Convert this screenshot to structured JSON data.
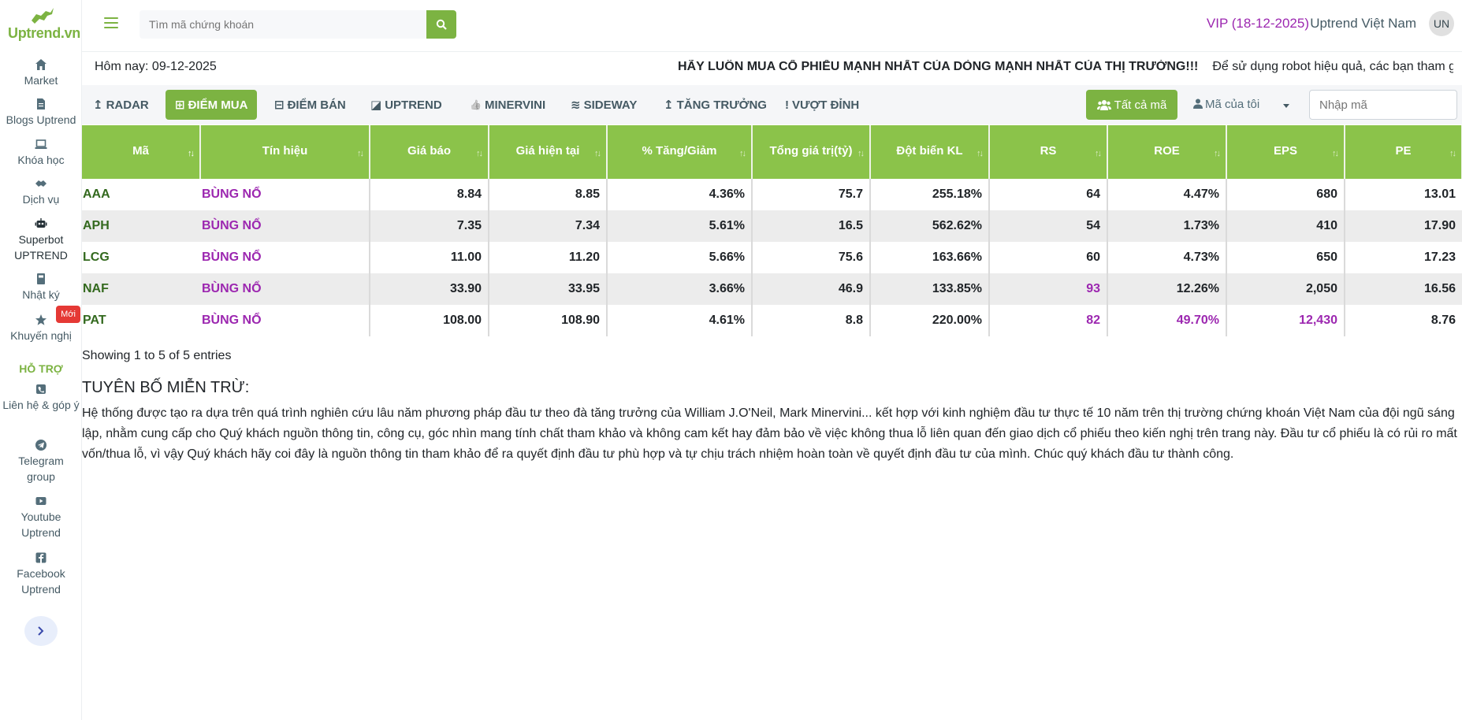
{
  "brand": {
    "name": "Uptrend.vn",
    "color": "#7cb342"
  },
  "sidebar": {
    "items": [
      {
        "label": "Market",
        "icon": "home-icon"
      },
      {
        "label": "Blogs Uptrend",
        "icon": "document-icon"
      },
      {
        "label": "Khóa học",
        "icon": "laptop-icon"
      },
      {
        "label": "Dịch vụ",
        "icon": "handshake-icon"
      },
      {
        "label": "Superbot UPTREND",
        "icon": "robot-icon"
      },
      {
        "label": "Nhật ký",
        "icon": "book-icon"
      },
      {
        "label": "Khuyến nghị",
        "icon": "star-icon",
        "badge": "Mới"
      }
    ],
    "support_heading": "HỖ TRỢ",
    "support_items": [
      {
        "label": "Liên hệ & góp ý",
        "icon": "contact-icon"
      },
      {
        "label": "Telegram group",
        "icon": "telegram-icon"
      },
      {
        "label": "Youtube Uptrend",
        "icon": "youtube-icon"
      },
      {
        "label": "Facebook Uptrend",
        "icon": "facebook-icon"
      }
    ],
    "collapse_icon": "chevron-right-icon"
  },
  "header": {
    "search_placeholder": "Tìm mã chứng khoán",
    "vip": "VIP (18-12-2025)",
    "user": "Uptrend Việt Nam",
    "avatar": "UN"
  },
  "info": {
    "today": "Hôm nay: 09-12-2025",
    "marquee_strong": "HÃY LUÔN MUA CỔ PHIẾU MẠNH NHẤT CỦA DÒNG MẠNH NHẤT CỦA THỊ TRƯỜNG!!!",
    "marquee_rest": "Để sử dụng robot hiệu quả, các bạn tham gia nh"
  },
  "tabs": [
    {
      "label": "RADAR",
      "icon": "↥"
    },
    {
      "label": "ĐIỂM MUA",
      "icon": "⊞",
      "active": true
    },
    {
      "label": "ĐIỂM BÁN",
      "icon": "⊟"
    },
    {
      "label": "UPTREND",
      "icon": "◪"
    },
    {
      "label": "MINERVINI",
      "icon": "👍"
    },
    {
      "label": "SIDEWAY",
      "icon": "≋"
    },
    {
      "label": "TĂNG TRƯỞNG",
      "icon": "↥"
    },
    {
      "label": "VƯỢT ĐỈNH",
      "icon": "!"
    }
  ],
  "filters": {
    "all_label": "Tất cả mã",
    "mine_label": "Mã của tôi",
    "code_placeholder": "Nhập mã"
  },
  "table": {
    "columns": [
      "Mã",
      "Tín hiệu",
      "Giá báo",
      "Giá hiện tại",
      "% Tăng/Giảm",
      "Tổng giá trị(tỷ)",
      "Đột biến KL",
      "RS",
      "ROE",
      "EPS",
      "PE"
    ],
    "rows": [
      [
        "AAA",
        "BÙNG NỔ",
        "8.84",
        "8.85",
        "4.36%",
        "75.7",
        "255.18%",
        "64",
        "4.47%",
        "680",
        "13.01"
      ],
      [
        "APH",
        "BÙNG NỔ",
        "7.35",
        "7.34",
        "5.61%",
        "16.5",
        "562.62%",
        "54",
        "1.73%",
        "410",
        "17.90"
      ],
      [
        "LCG",
        "BÙNG NỔ",
        "11.00",
        "11.20",
        "5.66%",
        "75.6",
        "163.66%",
        "60",
        "4.73%",
        "650",
        "17.23"
      ],
      [
        "NAF",
        "BÙNG NỔ",
        "33.90",
        "33.95",
        "3.66%",
        "46.9",
        "133.85%",
        "93",
        "12.26%",
        "2,050",
        "16.56"
      ],
      [
        "PAT",
        "BÙNG NỔ",
        "108.00",
        "108.90",
        "4.61%",
        "8.8",
        "220.00%",
        "82",
        "49.70%",
        "12,430",
        "8.76"
      ]
    ],
    "highlight": [
      [
        3,
        7
      ],
      [
        4,
        7
      ],
      [
        4,
        8
      ],
      [
        4,
        9
      ]
    ],
    "showing": "Showing 1 to 5 of 5 entries"
  },
  "disclaimer": {
    "title": "TUYÊN BỐ MIỄN TRỪ:",
    "text": "Hệ thống được tạo ra dựa trên quá trình nghiên cứu lâu năm phương pháp đầu tư theo đà tăng trưởng của William J.O'Neil, Mark Minervini... kết hợp với kinh nghiệm đầu tư thực tế 10 năm trên thị trường chứng khoán Việt Nam của đội ngũ sáng lập, nhằm cung cấp cho Quý khách nguồn thông tin, công cụ, góc nhìn mang tính chất tham khảo và không cam kết hay đảm bảo về việc không thua lỗ liên quan đến giao dịch cổ phiếu theo kiến nghị trên trang này. Đầu tư cổ phiếu là có rủi ro mất vốn/thua lỗ, vì vậy Quý khách hãy coi đây là nguồn thông tin tham khảo để ra quyết định đầu tư phù hợp và tự chịu trách nhiệm hoàn toàn về quyết định đầu tư của mình. Chúc quý khách đầu tư thành công."
  }
}
